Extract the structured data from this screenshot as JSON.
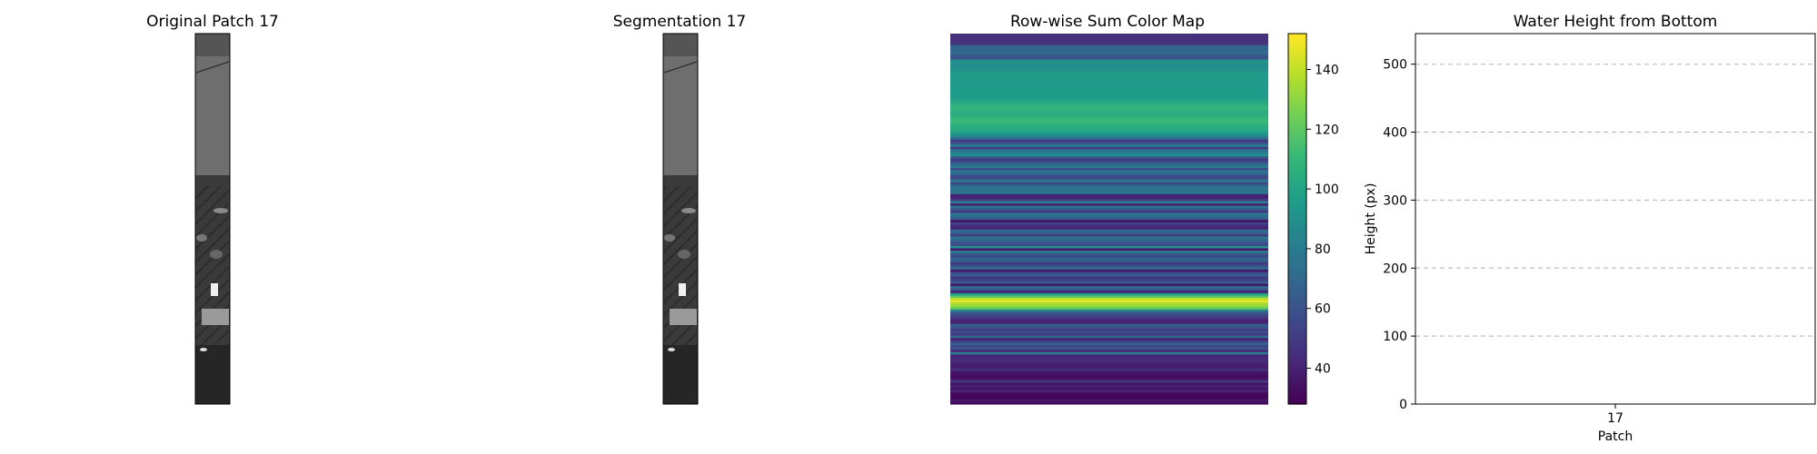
{
  "panels": {
    "original": {
      "title": "Original Patch 17"
    },
    "segmentation": {
      "title": "Segmentation 17"
    }
  },
  "chart_data": [
    {
      "type": "heatmap",
      "title": "Row-wise Sum Color Map",
      "colormap": "viridis",
      "colorbar": {
        "min": 28,
        "max": 152,
        "ticks": [
          40,
          60,
          80,
          100,
          120,
          140
        ]
      },
      "rows": [
        45,
        45,
        45,
        45,
        50,
        68,
        68,
        70,
        70,
        60,
        60,
        90,
        90,
        88,
        90,
        90,
        95,
        96,
        96,
        96,
        95,
        94,
        95,
        96,
        96,
        96,
        95,
        98,
        100,
        104,
        106,
        110,
        108,
        104,
        104,
        108,
        110,
        112,
        106,
        104,
        104,
        100,
        94,
        85,
        70,
        50,
        60,
        80,
        50,
        75,
        80,
        90,
        62,
        50,
        60,
        70,
        80,
        56,
        76,
        68,
        56,
        58,
        80,
        54,
        70,
        76,
        74,
        78,
        40,
        40,
        50,
        80,
        40,
        75,
        62,
        48,
        78,
        70,
        64,
        34,
        54,
        44,
        40,
        70,
        66,
        50,
        76,
        70,
        60,
        56,
        90,
        36,
        80,
        60,
        56,
        68,
        64,
        48,
        60,
        70,
        36,
        58,
        64,
        48,
        54,
        64,
        36,
        72,
        60,
        40,
        98,
        120,
        140,
        148,
        135,
        132,
        120,
        80,
        60,
        54,
        48,
        40,
        40,
        64,
        62,
        50,
        58,
        48,
        72,
        40,
        52,
        66,
        54,
        60,
        42,
        80,
        40,
        42,
        44,
        40,
        38,
        38,
        46,
        34,
        34,
        32,
        36,
        48,
        34,
        40,
        34,
        40,
        32,
        30,
        30,
        36,
        32
      ]
    },
    {
      "type": "bar",
      "title": "Water Height from Bottom",
      "xlabel": "Patch",
      "ylabel": "Height (px)",
      "categories": [
        "17"
      ],
      "values": [
        0
      ],
      "ylim": [
        0,
        545
      ],
      "yticks": [
        0,
        100,
        200,
        300,
        400,
        500
      ],
      "grid": "y-dashed"
    }
  ]
}
